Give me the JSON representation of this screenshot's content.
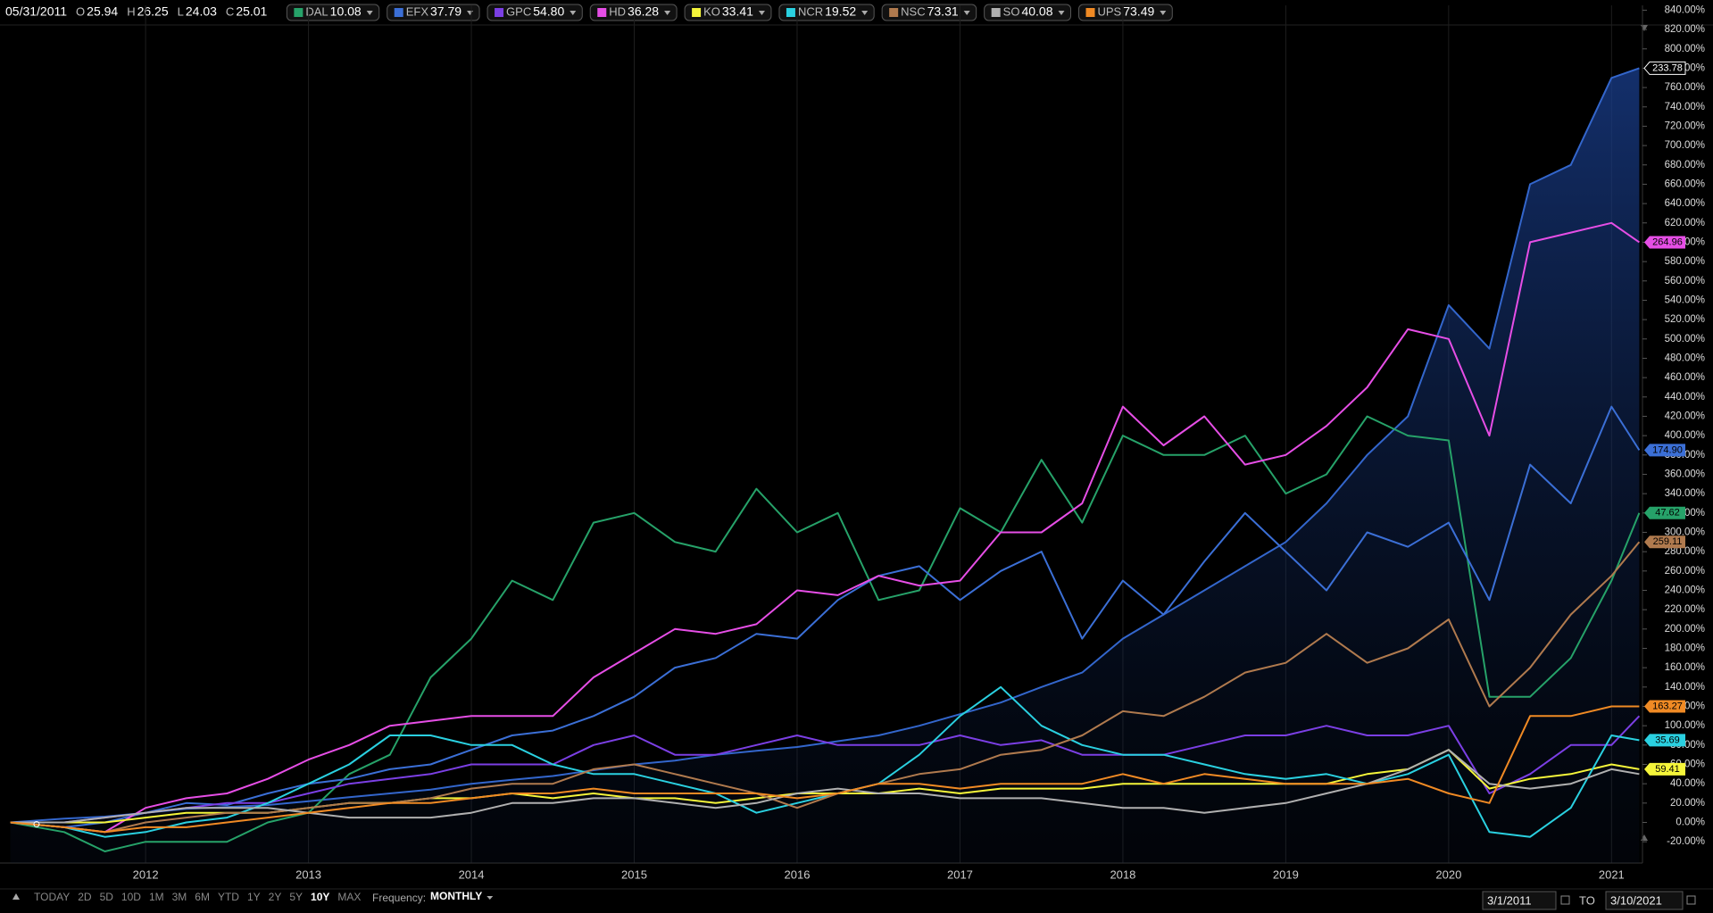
{
  "header": {
    "date": "05/31/2011",
    "ohlc": [
      {
        "label": "O",
        "value": "25.94"
      },
      {
        "label": "H",
        "value": "26.25"
      },
      {
        "label": "L",
        "value": "24.03"
      },
      {
        "label": "C",
        "value": "25.01"
      }
    ]
  },
  "chart_data": {
    "type": "line",
    "x": [
      2011.17,
      2011.5,
      2011.75,
      2012,
      2012.25,
      2012.5,
      2012.75,
      2013,
      2013.25,
      2013.5,
      2013.75,
      2014,
      2014.25,
      2014.5,
      2014.75,
      2015,
      2015.25,
      2015.5,
      2015.75,
      2016,
      2016.25,
      2016.5,
      2016.75,
      2017,
      2017.25,
      2017.5,
      2017.75,
      2018,
      2018.25,
      2018.5,
      2018.75,
      2019,
      2019.25,
      2019.5,
      2019.75,
      2020,
      2020.25,
      2020.5,
      2020.75,
      2021,
      2021.17
    ],
    "xlim": [
      2011.15,
      2021.19
    ],
    "xticks": [
      2012,
      2013,
      2014,
      2015,
      2016,
      2017,
      2018,
      2019,
      2020,
      2021
    ],
    "ylim": [
      -42,
      845
    ],
    "yticks": [
      {
        "value": -20,
        "label": "-20.00%"
      },
      {
        "value": 0,
        "label": "0.00%"
      },
      {
        "value": 20,
        "label": "20.00%"
      },
      {
        "value": 40,
        "label": "40.00%"
      },
      {
        "value": 60,
        "label": "60.00%"
      },
      {
        "value": 80,
        "label": "80.00%"
      },
      {
        "value": 100,
        "label": "100.00%"
      },
      {
        "value": 120,
        "label": "120.00%"
      },
      {
        "value": 140,
        "label": "140.00%"
      },
      {
        "value": 160,
        "label": "160.00%"
      },
      {
        "value": 180,
        "label": "180.00%"
      },
      {
        "value": 200,
        "label": "200.00%"
      },
      {
        "value": 220,
        "label": "220.00%"
      },
      {
        "value": 240,
        "label": "240.00%"
      },
      {
        "value": 260,
        "label": "260.00%"
      },
      {
        "value": 280,
        "label": "280.00%"
      },
      {
        "value": 300,
        "label": "300.00%"
      },
      {
        "value": 320,
        "label": "320.00%"
      },
      {
        "value": 340,
        "label": "340.00%"
      },
      {
        "value": 360,
        "label": "360.00%"
      },
      {
        "value": 380,
        "label": "380.00%"
      },
      {
        "value": 400,
        "label": "400.00%"
      },
      {
        "value": 420,
        "label": "420.00%"
      },
      {
        "value": 440,
        "label": "440.00%"
      },
      {
        "value": 460,
        "label": "460.00%"
      },
      {
        "value": 480,
        "label": "480.00%"
      },
      {
        "value": 500,
        "label": "500.00%"
      },
      {
        "value": 520,
        "label": "520.00%"
      },
      {
        "value": 540,
        "label": "540.00%"
      },
      {
        "value": 560,
        "label": "560.00%"
      },
      {
        "value": 580,
        "label": "580.00%"
      },
      {
        "value": 600,
        "label": "600.00%"
      },
      {
        "value": 620,
        "label": "620.00%"
      },
      {
        "value": 640,
        "label": "640.00%"
      },
      {
        "value": 660,
        "label": "660.00%"
      },
      {
        "value": 680,
        "label": "680.00%"
      },
      {
        "value": 700,
        "label": "700.00%"
      },
      {
        "value": 720,
        "label": "720.00%"
      },
      {
        "value": 740,
        "label": "740.00%"
      },
      {
        "value": 760,
        "label": "760.00%"
      },
      {
        "value": 780,
        "label": "780.00%"
      },
      {
        "value": 800,
        "label": "800.00%"
      },
      {
        "value": 820,
        "label": "820.00%"
      },
      {
        "value": 840,
        "label": "840.00%"
      }
    ],
    "grid": "x",
    "series": [
      {
        "color": "#3366cc",
        "fill": true,
        "tag": "233.78",
        "values": [
          0,
          4,
          6,
          10,
          14,
          16,
          18,
          22,
          26,
          30,
          34,
          40,
          44,
          48,
          54,
          60,
          64,
          70,
          74,
          78,
          84,
          90,
          100,
          112,
          124,
          140,
          155,
          190,
          215,
          240,
          265,
          290,
          330,
          380,
          420,
          535,
          490,
          660,
          680,
          770,
          780
        ]
      },
      {
        "name": "DAL",
        "price": "10.08",
        "color": "#26a269",
        "tag": "47.62",
        "values": [
          0,
          -10,
          -30,
          -20,
          -20,
          -20,
          0,
          10,
          50,
          70,
          150,
          190,
          250,
          230,
          310,
          320,
          290,
          280,
          345,
          300,
          320,
          230,
          240,
          325,
          300,
          375,
          310,
          400,
          380,
          380,
          400,
          340,
          360,
          420,
          400,
          395,
          130,
          130,
          170,
          250,
          320
        ]
      },
      {
        "name": "EFX",
        "price": "37.79",
        "color": "#3b6fd6",
        "tag": "174.90",
        "values": [
          0,
          -5,
          0,
          10,
          20,
          18,
          30,
          40,
          45,
          55,
          60,
          75,
          90,
          95,
          110,
          130,
          160,
          170,
          195,
          190,
          230,
          255,
          265,
          230,
          260,
          280,
          190,
          250,
          215,
          270,
          320,
          280,
          240,
          300,
          285,
          310,
          230,
          370,
          330,
          430,
          385
        ]
      },
      {
        "name": "GPC",
        "price": "54.80",
        "color": "#7b3fe4",
        "values": [
          0,
          0,
          5,
          10,
          15,
          20,
          20,
          30,
          40,
          45,
          50,
          60,
          60,
          60,
          80,
          90,
          70,
          70,
          80,
          90,
          80,
          80,
          80,
          90,
          80,
          85,
          70,
          70,
          70,
          80,
          90,
          90,
          100,
          90,
          90,
          100,
          30,
          50,
          80,
          80,
          110
        ]
      },
      {
        "name": "HD",
        "price": "36.28",
        "color": "#e64ee6",
        "tag": "264.96",
        "values": [
          0,
          -5,
          -10,
          15,
          25,
          30,
          45,
          65,
          80,
          100,
          105,
          110,
          110,
          110,
          150,
          175,
          200,
          195,
          205,
          240,
          235,
          255,
          245,
          250,
          300,
          300,
          330,
          430,
          390,
          420,
          370,
          380,
          410,
          450,
          510,
          500,
          400,
          600,
          610,
          620,
          600
        ]
      },
      {
        "name": "KO",
        "price": "33.41",
        "color": "#f5f53a",
        "tag": "59.41",
        "values": [
          0,
          0,
          0,
          5,
          10,
          10,
          10,
          15,
          20,
          20,
          25,
          25,
          30,
          25,
          30,
          25,
          25,
          20,
          25,
          30,
          30,
          30,
          35,
          30,
          35,
          35,
          35,
          40,
          40,
          40,
          40,
          40,
          40,
          50,
          55,
          75,
          35,
          45,
          50,
          60,
          55
        ]
      },
      {
        "name": "NCR",
        "price": "19.52",
        "color": "#2ad0e0",
        "tag": "35.69",
        "values": [
          0,
          -5,
          -15,
          -10,
          0,
          5,
          20,
          40,
          60,
          90,
          90,
          80,
          80,
          60,
          50,
          50,
          40,
          30,
          10,
          20,
          30,
          40,
          70,
          110,
          140,
          100,
          80,
          70,
          70,
          60,
          50,
          45,
          50,
          40,
          50,
          70,
          -10,
          -15,
          15,
          90,
          85
        ]
      },
      {
        "name": "NSC",
        "price": "73.31",
        "color": "#b07a4e",
        "tag": "259.11",
        "values": [
          0,
          -5,
          -10,
          0,
          5,
          10,
          10,
          15,
          20,
          20,
          25,
          35,
          40,
          40,
          55,
          60,
          50,
          40,
          30,
          15,
          30,
          40,
          50,
          55,
          70,
          75,
          90,
          115,
          110,
          130,
          155,
          165,
          195,
          165,
          180,
          210,
          120,
          160,
          215,
          255,
          290
        ]
      },
      {
        "name": "SO",
        "price": "40.08",
        "color": "#b0b0b0",
        "values": [
          0,
          0,
          5,
          10,
          15,
          15,
          15,
          10,
          5,
          5,
          5,
          10,
          20,
          20,
          25,
          25,
          20,
          15,
          20,
          30,
          35,
          30,
          30,
          25,
          25,
          25,
          20,
          15,
          15,
          10,
          15,
          20,
          30,
          40,
          55,
          75,
          40,
          35,
          40,
          55,
          50
        ]
      },
      {
        "name": "UPS",
        "price": "73.49",
        "color": "#f08a24",
        "tag": "163.27",
        "values": [
          0,
          -5,
          -10,
          -5,
          -5,
          0,
          5,
          10,
          15,
          20,
          20,
          25,
          30,
          30,
          35,
          30,
          30,
          30,
          30,
          25,
          30,
          40,
          40,
          35,
          40,
          40,
          40,
          50,
          40,
          50,
          45,
          40,
          40,
          40,
          45,
          30,
          20,
          110,
          110,
          120,
          120
        ]
      }
    ]
  },
  "footer": {
    "ranges": [
      "TODAY",
      "2D",
      "5D",
      "10D",
      "1M",
      "3M",
      "6M",
      "YTD",
      "1Y",
      "2Y",
      "5Y",
      "10Y",
      "MAX"
    ],
    "active": "10Y",
    "frequency_label": "Frequency:",
    "frequency": "MONTHLY",
    "from": "3/1/2011",
    "to_label": "TO",
    "to": "3/10/2021"
  }
}
